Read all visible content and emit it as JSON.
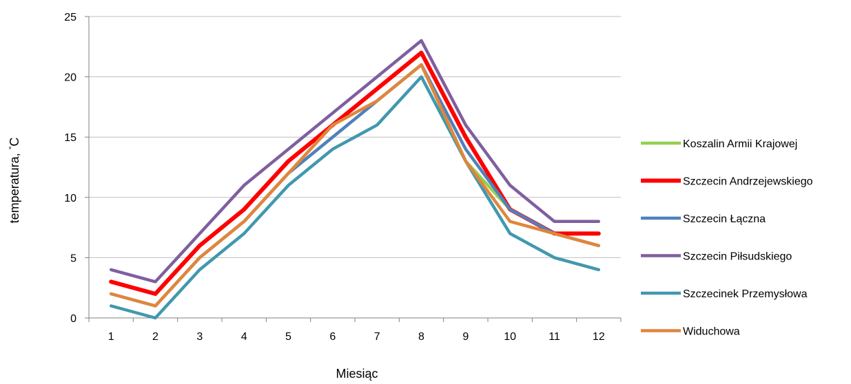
{
  "chart_data": {
    "type": "line",
    "title": "",
    "xlabel": "Miesiąc",
    "ylabel": "temperatura, ",
    "ylabel_unit": "°C",
    "x": [
      1,
      2,
      3,
      4,
      5,
      6,
      7,
      8,
      9,
      10,
      11,
      12
    ],
    "x_tick_labels": [
      "1",
      "2",
      "3",
      "4",
      "5",
      "6",
      "7",
      "8",
      "9",
      "10",
      "11",
      "12"
    ],
    "ylim": [
      0,
      25
    ],
    "y_ticks": [
      0,
      5,
      10,
      15,
      20,
      25
    ],
    "y_tick_labels": [
      "0",
      "5",
      "10",
      "15",
      "20",
      "25"
    ],
    "grid": "horizontal",
    "legend_position": "right",
    "series": [
      {
        "name": "Koszalin Armii Krajowej",
        "color": "#92d050",
        "values": [
          2,
          1,
          5,
          8,
          12,
          15,
          18,
          21,
          13,
          9,
          7,
          6
        ]
      },
      {
        "name": "Szczecin Andrzejewskiego",
        "color": "#ff0000",
        "values": [
          3,
          2,
          6,
          9,
          13,
          16,
          19,
          22,
          15,
          9,
          7,
          7
        ]
      },
      {
        "name": "Szczecin Łączna",
        "color": "#4f81bd",
        "values": [
          2,
          1,
          5,
          8,
          12,
          15,
          18,
          21,
          14,
          9,
          7,
          6
        ]
      },
      {
        "name": "Szczecin Piłsudskiego",
        "color": "#7f5f9f",
        "values": [
          4,
          3,
          7,
          11,
          14,
          17,
          20,
          23,
          16,
          11,
          8,
          8
        ]
      },
      {
        "name": "Szczecinek Przemysłowa",
        "color": "#4198ae",
        "values": [
          1,
          0,
          4,
          7,
          11,
          14,
          16,
          20,
          13,
          7,
          5,
          4
        ]
      },
      {
        "name": "Widuchowa",
        "color": "#e0863c",
        "values": [
          2,
          1,
          5,
          8,
          12,
          16,
          18,
          21,
          13,
          8,
          7,
          6
        ]
      }
    ]
  }
}
